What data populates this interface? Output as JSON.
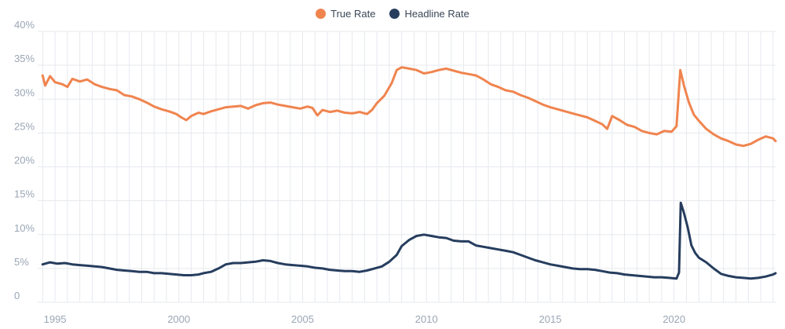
{
  "colors": {
    "true_rate": "#f0844f",
    "headline_rate": "#263d5e",
    "grid": "#e6e9ee",
    "tick": "#9aa6b5"
  },
  "chart_data": {
    "type": "line",
    "legend_position": "top-center",
    "grid": true,
    "xlim": [
      1994.3,
      2024.1
    ],
    "ylim": [
      0,
      40
    ],
    "x_ticks": [
      1995,
      2000,
      2005,
      2010,
      2015,
      2020
    ],
    "x_tick_labels": [
      "1995",
      "2000",
      "2005",
      "2010",
      "2015",
      "2020"
    ],
    "y_ticks": [
      0,
      5,
      10,
      15,
      20,
      25,
      30,
      35,
      40
    ],
    "y_tick_labels": [
      "0",
      "5%",
      "10%",
      "15%",
      "20%",
      "25%",
      "30%",
      "35%",
      "40%"
    ],
    "series": [
      {
        "name": "True Rate",
        "color": "#f0844f",
        "points": [
          [
            1994.5,
            33.5
          ],
          [
            1994.6,
            32.0
          ],
          [
            1994.8,
            33.4
          ],
          [
            1995.0,
            32.5
          ],
          [
            1995.3,
            32.2
          ],
          [
            1995.5,
            31.8
          ],
          [
            1995.7,
            33.0
          ],
          [
            1996.0,
            32.6
          ],
          [
            1996.3,
            32.9
          ],
          [
            1996.6,
            32.2
          ],
          [
            1996.9,
            31.8
          ],
          [
            1997.2,
            31.5
          ],
          [
            1997.5,
            31.3
          ],
          [
            1997.8,
            30.6
          ],
          [
            1998.1,
            30.4
          ],
          [
            1998.4,
            30.0
          ],
          [
            1998.7,
            29.5
          ],
          [
            1999.0,
            28.9
          ],
          [
            1999.3,
            28.5
          ],
          [
            1999.6,
            28.2
          ],
          [
            1999.9,
            27.8
          ],
          [
            2000.1,
            27.3
          ],
          [
            2000.3,
            26.9
          ],
          [
            2000.5,
            27.5
          ],
          [
            2000.8,
            28.0
          ],
          [
            2001.0,
            27.8
          ],
          [
            2001.3,
            28.2
          ],
          [
            2001.6,
            28.5
          ],
          [
            2001.9,
            28.8
          ],
          [
            2002.2,
            28.9
          ],
          [
            2002.5,
            29.0
          ],
          [
            2002.8,
            28.6
          ],
          [
            2003.1,
            29.1
          ],
          [
            2003.4,
            29.4
          ],
          [
            2003.7,
            29.5
          ],
          [
            2004.0,
            29.2
          ],
          [
            2004.3,
            29.0
          ],
          [
            2004.6,
            28.8
          ],
          [
            2004.9,
            28.6
          ],
          [
            2005.2,
            28.9
          ],
          [
            2005.4,
            28.7
          ],
          [
            2005.6,
            27.6
          ],
          [
            2005.8,
            28.4
          ],
          [
            2006.1,
            28.1
          ],
          [
            2006.4,
            28.3
          ],
          [
            2006.7,
            28.0
          ],
          [
            2007.0,
            27.9
          ],
          [
            2007.3,
            28.1
          ],
          [
            2007.6,
            27.8
          ],
          [
            2007.8,
            28.4
          ],
          [
            2008.0,
            29.4
          ],
          [
            2008.3,
            30.5
          ],
          [
            2008.6,
            32.4
          ],
          [
            2008.8,
            34.3
          ],
          [
            2009.0,
            34.7
          ],
          [
            2009.3,
            34.5
          ],
          [
            2009.6,
            34.3
          ],
          [
            2009.9,
            33.8
          ],
          [
            2010.2,
            34.0
          ],
          [
            2010.5,
            34.3
          ],
          [
            2010.8,
            34.5
          ],
          [
            2011.1,
            34.2
          ],
          [
            2011.4,
            33.9
          ],
          [
            2011.7,
            33.7
          ],
          [
            2012.0,
            33.5
          ],
          [
            2012.3,
            32.9
          ],
          [
            2012.6,
            32.2
          ],
          [
            2012.9,
            31.8
          ],
          [
            2013.2,
            31.3
          ],
          [
            2013.5,
            31.1
          ],
          [
            2013.8,
            30.6
          ],
          [
            2014.1,
            30.2
          ],
          [
            2014.4,
            29.7
          ],
          [
            2014.7,
            29.2
          ],
          [
            2015.0,
            28.8
          ],
          [
            2015.3,
            28.5
          ],
          [
            2015.6,
            28.2
          ],
          [
            2015.9,
            27.9
          ],
          [
            2016.2,
            27.6
          ],
          [
            2016.5,
            27.3
          ],
          [
            2016.8,
            26.8
          ],
          [
            2017.1,
            26.3
          ],
          [
            2017.3,
            25.6
          ],
          [
            2017.5,
            27.5
          ],
          [
            2017.8,
            26.9
          ],
          [
            2018.1,
            26.2
          ],
          [
            2018.4,
            25.9
          ],
          [
            2018.7,
            25.3
          ],
          [
            2019.0,
            25.0
          ],
          [
            2019.3,
            24.8
          ],
          [
            2019.6,
            25.3
          ],
          [
            2019.9,
            25.2
          ],
          [
            2020.1,
            26.0
          ],
          [
            2020.25,
            34.3
          ],
          [
            2020.4,
            32.0
          ],
          [
            2020.6,
            29.5
          ],
          [
            2020.8,
            27.7
          ],
          [
            2021.0,
            26.8
          ],
          [
            2021.3,
            25.6
          ],
          [
            2021.6,
            24.8
          ],
          [
            2021.9,
            24.2
          ],
          [
            2022.2,
            23.8
          ],
          [
            2022.5,
            23.3
          ],
          [
            2022.8,
            23.1
          ],
          [
            2023.1,
            23.4
          ],
          [
            2023.4,
            24.0
          ],
          [
            2023.7,
            24.5
          ],
          [
            2024.0,
            24.2
          ],
          [
            2024.1,
            23.8
          ]
        ]
      },
      {
        "name": "Headline Rate",
        "color": "#263d5e",
        "points": [
          [
            1994.5,
            5.6
          ],
          [
            1994.8,
            5.9
          ],
          [
            1995.1,
            5.7
          ],
          [
            1995.4,
            5.8
          ],
          [
            1995.7,
            5.6
          ],
          [
            1996.0,
            5.5
          ],
          [
            1996.3,
            5.4
          ],
          [
            1996.6,
            5.3
          ],
          [
            1996.9,
            5.2
          ],
          [
            1997.2,
            5.0
          ],
          [
            1997.5,
            4.8
          ],
          [
            1997.8,
            4.7
          ],
          [
            1998.1,
            4.6
          ],
          [
            1998.4,
            4.5
          ],
          [
            1998.7,
            4.5
          ],
          [
            1999.0,
            4.3
          ],
          [
            1999.3,
            4.3
          ],
          [
            1999.6,
            4.2
          ],
          [
            1999.9,
            4.1
          ],
          [
            2000.2,
            4.0
          ],
          [
            2000.5,
            4.0
          ],
          [
            2000.8,
            4.1
          ],
          [
            2001.0,
            4.3
          ],
          [
            2001.3,
            4.5
          ],
          [
            2001.6,
            5.0
          ],
          [
            2001.9,
            5.6
          ],
          [
            2002.2,
            5.8
          ],
          [
            2002.5,
            5.8
          ],
          [
            2002.8,
            5.9
          ],
          [
            2003.1,
            6.0
          ],
          [
            2003.4,
            6.2
          ],
          [
            2003.7,
            6.1
          ],
          [
            2004.0,
            5.8
          ],
          [
            2004.3,
            5.6
          ],
          [
            2004.6,
            5.5
          ],
          [
            2004.9,
            5.4
          ],
          [
            2005.2,
            5.3
          ],
          [
            2005.5,
            5.1
          ],
          [
            2005.8,
            5.0
          ],
          [
            2006.1,
            4.8
          ],
          [
            2006.4,
            4.7
          ],
          [
            2006.7,
            4.6
          ],
          [
            2007.0,
            4.6
          ],
          [
            2007.3,
            4.5
          ],
          [
            2007.6,
            4.7
          ],
          [
            2007.9,
            5.0
          ],
          [
            2008.2,
            5.3
          ],
          [
            2008.5,
            6.0
          ],
          [
            2008.8,
            7.0
          ],
          [
            2009.0,
            8.3
          ],
          [
            2009.3,
            9.2
          ],
          [
            2009.6,
            9.8
          ],
          [
            2009.9,
            10.0
          ],
          [
            2010.2,
            9.8
          ],
          [
            2010.5,
            9.6
          ],
          [
            2010.8,
            9.5
          ],
          [
            2011.1,
            9.1
          ],
          [
            2011.4,
            9.0
          ],
          [
            2011.7,
            9.0
          ],
          [
            2012.0,
            8.4
          ],
          [
            2012.3,
            8.2
          ],
          [
            2012.6,
            8.0
          ],
          [
            2012.9,
            7.8
          ],
          [
            2013.2,
            7.6
          ],
          [
            2013.5,
            7.4
          ],
          [
            2013.8,
            7.0
          ],
          [
            2014.1,
            6.6
          ],
          [
            2014.4,
            6.2
          ],
          [
            2014.7,
            5.9
          ],
          [
            2015.0,
            5.6
          ],
          [
            2015.3,
            5.4
          ],
          [
            2015.6,
            5.2
          ],
          [
            2015.9,
            5.0
          ],
          [
            2016.2,
            4.9
          ],
          [
            2016.5,
            4.9
          ],
          [
            2016.8,
            4.8
          ],
          [
            2017.1,
            4.6
          ],
          [
            2017.4,
            4.4
          ],
          [
            2017.7,
            4.3
          ],
          [
            2018.0,
            4.1
          ],
          [
            2018.3,
            4.0
          ],
          [
            2018.6,
            3.9
          ],
          [
            2018.9,
            3.8
          ],
          [
            2019.2,
            3.7
          ],
          [
            2019.5,
            3.7
          ],
          [
            2019.8,
            3.6
          ],
          [
            2020.1,
            3.5
          ],
          [
            2020.2,
            4.4
          ],
          [
            2020.27,
            14.7
          ],
          [
            2020.4,
            13.2
          ],
          [
            2020.55,
            11.1
          ],
          [
            2020.7,
            8.4
          ],
          [
            2020.85,
            7.3
          ],
          [
            2021.0,
            6.6
          ],
          [
            2021.3,
            5.9
          ],
          [
            2021.6,
            5.0
          ],
          [
            2021.9,
            4.2
          ],
          [
            2022.2,
            3.9
          ],
          [
            2022.5,
            3.7
          ],
          [
            2022.8,
            3.6
          ],
          [
            2023.1,
            3.5
          ],
          [
            2023.4,
            3.6
          ],
          [
            2023.7,
            3.8
          ],
          [
            2024.0,
            4.1
          ],
          [
            2024.1,
            4.3
          ]
        ]
      }
    ]
  }
}
